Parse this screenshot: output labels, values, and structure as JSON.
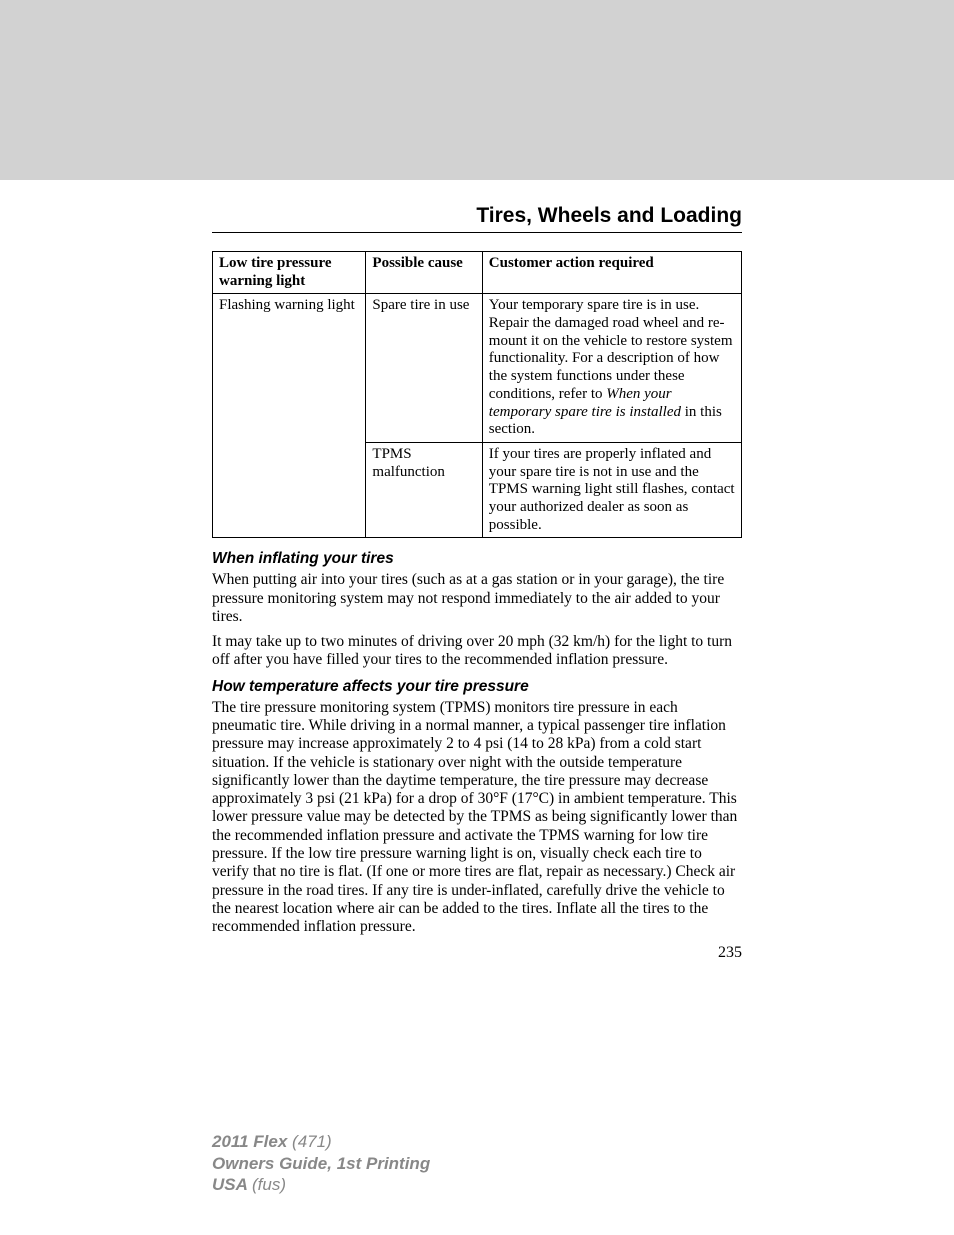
{
  "section_title": "Tires, Wheels and Loading",
  "table": {
    "headers": {
      "col1": "Low tire pressure warning light",
      "col2": "Possible cause",
      "col3": "Customer action required"
    },
    "row1": {
      "col1": "Flashing warning light",
      "col2": "Spare tire in use",
      "col3_part1": "Your temporary spare tire is in use. Repair the damaged road wheel and re-mount it on the vehicle to restore system functionality. For a description of how the system functions under these conditions, refer to ",
      "col3_italic": "When your temporary spare tire is installed",
      "col3_part2": " in this section."
    },
    "row2": {
      "col2": "TPMS malfunction",
      "col3": "If your tires are properly inflated and your spare tire is not in use and the TPMS warning light still flashes, contact your authorized dealer as soon as possible."
    }
  },
  "subheading1": "When inflating your tires",
  "para1": "When putting air into your tires (such as at a gas station or in your garage), the tire pressure monitoring system may not respond immediately to the air added to your tires.",
  "para2": "It may take up to two minutes of driving over 20 mph (32 km/h) for the light to turn off after you have filled your tires to the recommended inflation pressure.",
  "subheading2": "How temperature affects your tire pressure",
  "para3": "The tire pressure monitoring system (TPMS) monitors tire pressure in each pneumatic tire. While driving in a normal manner, a typical passenger tire inflation pressure may increase approximately 2 to 4 psi (14 to 28 kPa) from a cold start situation. If the vehicle is stationary over night with the outside temperature significantly lower than the daytime temperature, the tire pressure may decrease approximately 3 psi (21 kPa) for a drop of 30°F (17°C) in ambient temperature. This lower pressure value may be detected by the TPMS as being significantly lower than the recommended inflation pressure and activate the TPMS warning for low tire pressure. If the low tire pressure warning light is on, visually check each tire to verify that no tire is flat. (If one or more tires are flat, repair as necessary.) Check air pressure in the road tires. If any tire is under-inflated, carefully drive the vehicle to the nearest location where air can be added to the tires. Inflate all the tires to the recommended inflation pressure.",
  "page_number": "235",
  "footer": {
    "line1_bold": "2011 Flex ",
    "line1_rest": "(471)",
    "line2": "Owners Guide, 1st Printing",
    "line3_bold": "USA ",
    "line3_rest": "(fus)"
  },
  "colors": {
    "gray_bar": "#d2d2d2",
    "footer_text": "#888888",
    "body_text": "#000000"
  }
}
